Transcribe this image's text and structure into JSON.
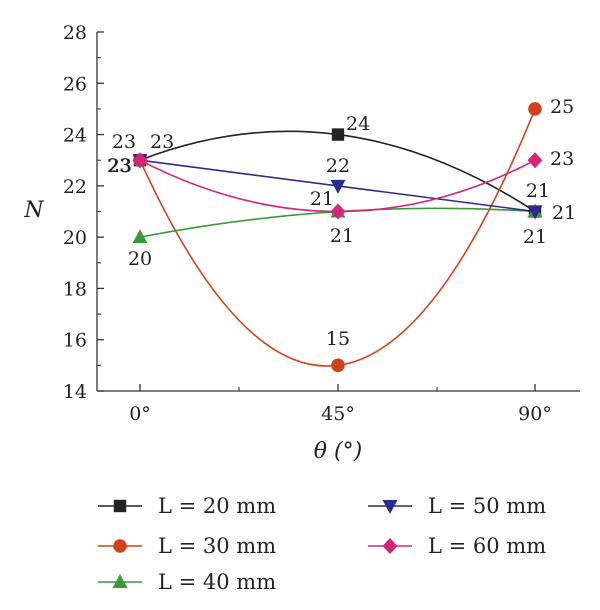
{
  "chart_data": {
    "type": "line",
    "categories": [
      "0°",
      "45°",
      "90°"
    ],
    "x": [
      0,
      45,
      90
    ],
    "xlabel": "θ (°)",
    "ylabel": "N",
    "ylim": [
      14,
      28
    ],
    "yticks": [
      14,
      16,
      18,
      20,
      22,
      24,
      26,
      28
    ],
    "grid": false,
    "legend_placement": "bottom",
    "series": [
      {
        "name": "L = 20 mm",
        "marker": "square",
        "color": "#222222",
        "values": [
          23,
          24,
          21
        ],
        "labels": [
          "23",
          "24",
          "21"
        ]
      },
      {
        "name": "L = 30 mm",
        "marker": "circle",
        "color": "#d1421b",
        "values": [
          23,
          15,
          25
        ],
        "labels": [
          "23",
          "15",
          "25"
        ]
      },
      {
        "name": "L = 40 mm",
        "marker": "triangle-up",
        "color": "#3a9a3a",
        "values": [
          20,
          21,
          21
        ],
        "labels": [
          "20",
          "",
          "21"
        ]
      },
      {
        "name": "L = 50 mm",
        "marker": "triangle-down",
        "color": "#2e2a8c",
        "values": [
          23,
          22,
          21
        ],
        "labels": [
          "23",
          "22",
          ""
        ]
      },
      {
        "name": "L = 60 mm",
        "marker": "diamond",
        "color": "#d3267a",
        "values": [
          23,
          21,
          23
        ],
        "labels": [
          "23",
          "21",
          "23"
        ]
      }
    ],
    "extra_labels": [
      "21",
      "21"
    ]
  }
}
